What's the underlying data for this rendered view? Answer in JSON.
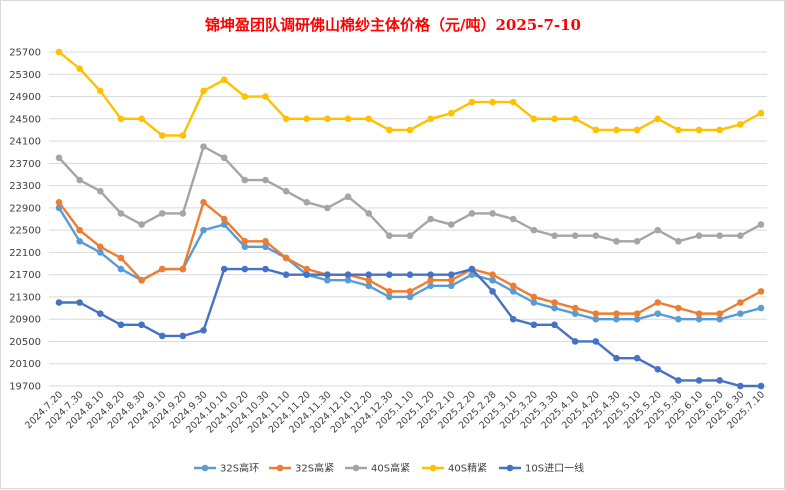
{
  "chart_data": {
    "type": "line",
    "title": "锦坤盈团队调研佛山棉纱主体价格（元/吨）2025-7-10",
    "xlabel": "",
    "ylabel": "",
    "ylim": [
      19700,
      25700
    ],
    "yticks": [
      19700,
      20100,
      20500,
      20900,
      21300,
      21700,
      22100,
      22500,
      22900,
      23300,
      23700,
      24100,
      24500,
      24900,
      25300,
      25700
    ],
    "grid": true,
    "legend_position": "bottom",
    "categories": [
      "2024.7.20",
      "2024.7.30",
      "2024.8.10",
      "2024.8.20",
      "2024.8.30",
      "2024.9.10",
      "2024.9.20",
      "2024.9.30",
      "2024.10.10",
      "2024.10.20",
      "2024.10.30",
      "2024.11.10",
      "2024.11.20",
      "2024.11.30",
      "2024.12.10",
      "2024.12.20",
      "2024.12.30",
      "2025.1.10",
      "2025.1.20",
      "2025.2.10",
      "2025.2.20",
      "2025.2.28",
      "2025.3.10",
      "2025.3.20",
      "2025.3.30",
      "2025.4.10",
      "2025.4.20",
      "2025.4.30",
      "2025.5.10",
      "2025.5.20",
      "2025.5.30",
      "2025.6.10",
      "2025.6.20",
      "2025.6.30",
      "2025.7.10"
    ],
    "series": [
      {
        "name": "32S高环",
        "color": "#5b9bd5",
        "values": [
          22900,
          22300,
          22100,
          21800,
          21600,
          21800,
          21800,
          22500,
          22600,
          22200,
          22200,
          22000,
          21700,
          21600,
          21600,
          21500,
          21300,
          21300,
          21500,
          21500,
          21700,
          21600,
          21400,
          21200,
          21100,
          21000,
          20900,
          20900,
          20900,
          21000,
          20900,
          20900,
          20900,
          21000,
          21100
        ]
      },
      {
        "name": "32S高紧",
        "color": "#ed7d31",
        "values": [
          23000,
          22500,
          22200,
          22000,
          21600,
          21800,
          21800,
          23000,
          22700,
          22300,
          22300,
          22000,
          21800,
          21700,
          21700,
          21600,
          21400,
          21400,
          21600,
          21600,
          21800,
          21700,
          21500,
          21300,
          21200,
          21100,
          21000,
          21000,
          21000,
          21200,
          21100,
          21000,
          21000,
          21200,
          21400
        ]
      },
      {
        "name": "40S高紧",
        "color": "#a5a5a5",
        "values": [
          23800,
          23400,
          23200,
          22800,
          22600,
          22800,
          22800,
          24000,
          23800,
          23400,
          23400,
          23200,
          23000,
          22900,
          23100,
          22800,
          22400,
          22400,
          22700,
          22600,
          22800,
          22800,
          22700,
          22500,
          22400,
          22400,
          22400,
          22300,
          22300,
          22500,
          22300,
          22400,
          22400,
          22400,
          22600
        ]
      },
      {
        "name": "40S精紧",
        "color": "#ffc000",
        "values": [
          25700,
          25400,
          25000,
          24500,
          24500,
          24200,
          24200,
          25000,
          25200,
          24900,
          24900,
          24500,
          24500,
          24500,
          24500,
          24500,
          24300,
          24300,
          24500,
          24600,
          24800,
          24800,
          24800,
          24500,
          24500,
          24500,
          24300,
          24300,
          24300,
          24500,
          24300,
          24300,
          24300,
          24400,
          24600
        ]
      },
      {
        "name": "10S进口一线",
        "color": "#4472c4",
        "values": [
          21200,
          21200,
          21000,
          20800,
          20800,
          20600,
          20600,
          20700,
          21800,
          21800,
          21800,
          21700,
          21700,
          21700,
          21700,
          21700,
          21700,
          21700,
          21700,
          21700,
          21800,
          21400,
          20900,
          20800,
          20800,
          20500,
          20500,
          20200,
          20200,
          20000,
          19800,
          19800,
          19800,
          19700,
          19700
        ]
      }
    ]
  }
}
